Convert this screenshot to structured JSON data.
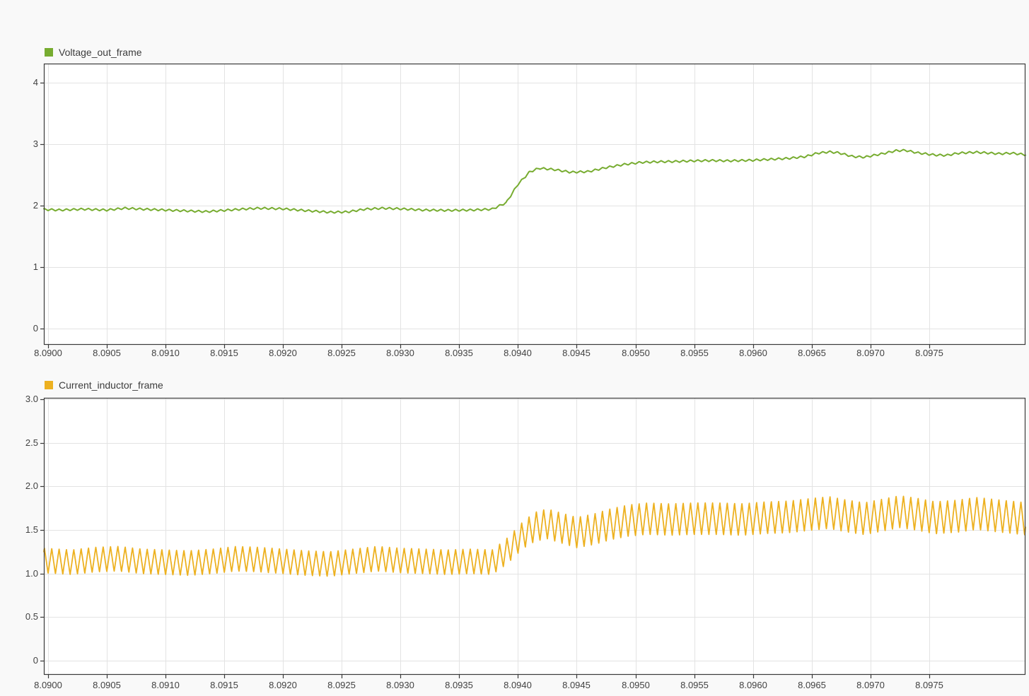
{
  "app": {
    "background_color": "#f9f9f9",
    "plot_background_color": "#ffffff",
    "grid_color": "#e3e3e3",
    "axis_color": "#3a3a3a",
    "tick_label_color": "#424242"
  },
  "chart_data": [
    {
      "type": "line",
      "title": "",
      "xlabel": "",
      "ylabel": "",
      "grid": true,
      "legend_position": "top-left",
      "series": [
        {
          "name": "Voltage_out_frame",
          "color": "#77AC30",
          "line_width": 2
        }
      ],
      "xlim": [
        8.089964,
        8.09832
      ],
      "ylim": [
        -0.26,
        4.31
      ],
      "xticks": [
        {
          "v": 8.09,
          "label": "8.0900"
        },
        {
          "v": 8.0905,
          "label": "8.0905"
        },
        {
          "v": 8.091,
          "label": "8.0910"
        },
        {
          "v": 8.0915,
          "label": "8.0915"
        },
        {
          "v": 8.092,
          "label": "8.0920"
        },
        {
          "v": 8.0925,
          "label": "8.0925"
        },
        {
          "v": 8.093,
          "label": "8.0930"
        },
        {
          "v": 8.0935,
          "label": "8.0935"
        },
        {
          "v": 8.094,
          "label": "8.0940"
        },
        {
          "v": 8.0945,
          "label": "8.0945"
        },
        {
          "v": 8.095,
          "label": "8.0950"
        },
        {
          "v": 8.0955,
          "label": "8.0955"
        },
        {
          "v": 8.096,
          "label": "8.0960"
        },
        {
          "v": 8.0965,
          "label": "8.0965"
        },
        {
          "v": 8.097,
          "label": "8.0970"
        },
        {
          "v": 8.0975,
          "label": "8.0975"
        }
      ],
      "yticks": [
        {
          "v": 0,
          "label": "0"
        },
        {
          "v": 1,
          "label": "1"
        },
        {
          "v": 2,
          "label": "2"
        },
        {
          "v": 3,
          "label": "3"
        },
        {
          "v": 4,
          "label": "4"
        }
      ],
      "signal": {
        "model": "trend_with_ripple",
        "ripple_period_s": 6.25e-05,
        "ripple_amplitude": 0.016,
        "trend_keypoints": [
          [
            8.08996,
            1.94
          ],
          [
            8.0901,
            1.93
          ],
          [
            8.0903,
            1.945
          ],
          [
            8.0905,
            1.93
          ],
          [
            8.09065,
            1.96
          ],
          [
            8.0908,
            1.945
          ],
          [
            8.091,
            1.93
          ],
          [
            8.0912,
            1.915
          ],
          [
            8.09135,
            1.905
          ],
          [
            8.0915,
            1.925
          ],
          [
            8.09165,
            1.945
          ],
          [
            8.0918,
            1.96
          ],
          [
            8.092,
            1.95
          ],
          [
            8.0922,
            1.92
          ],
          [
            8.0924,
            1.895
          ],
          [
            8.09255,
            1.9
          ],
          [
            8.0927,
            1.945
          ],
          [
            8.09285,
            1.96
          ],
          [
            8.093,
            1.95
          ],
          [
            8.0932,
            1.93
          ],
          [
            8.0934,
            1.925
          ],
          [
            8.0936,
            1.93
          ],
          [
            8.09378,
            1.945
          ],
          [
            8.0939,
            2.05
          ],
          [
            8.094,
            2.35
          ],
          [
            8.0941,
            2.55
          ],
          [
            8.09418,
            2.61
          ],
          [
            8.0943,
            2.59
          ],
          [
            8.09445,
            2.545
          ],
          [
            8.0946,
            2.555
          ],
          [
            8.09475,
            2.62
          ],
          [
            8.0949,
            2.67
          ],
          [
            8.09505,
            2.705
          ],
          [
            8.0952,
            2.715
          ],
          [
            8.09535,
            2.72
          ],
          [
            8.0955,
            2.73
          ],
          [
            8.09565,
            2.735
          ],
          [
            8.0958,
            2.73
          ],
          [
            8.096,
            2.74
          ],
          [
            8.09615,
            2.755
          ],
          [
            8.0963,
            2.77
          ],
          [
            8.09645,
            2.8
          ],
          [
            8.09655,
            2.855
          ],
          [
            8.09665,
            2.875
          ],
          [
            8.09673,
            2.86
          ],
          [
            8.09685,
            2.8
          ],
          [
            8.09695,
            2.79
          ],
          [
            8.0971,
            2.845
          ],
          [
            8.09722,
            2.895
          ],
          [
            8.0973,
            2.9
          ],
          [
            8.0974,
            2.86
          ],
          [
            8.09755,
            2.825
          ],
          [
            8.09765,
            2.82
          ],
          [
            8.09775,
            2.855
          ],
          [
            8.0979,
            2.87
          ],
          [
            8.0981,
            2.845
          ],
          [
            8.0982,
            2.855
          ],
          [
            8.09832,
            2.83
          ]
        ]
      }
    },
    {
      "type": "line",
      "title": "",
      "xlabel": "",
      "ylabel": "",
      "grid": true,
      "legend_position": "top-left",
      "series": [
        {
          "name": "Current_inductor_frame",
          "color": "#EDB120",
          "line_width": 1.8
        }
      ],
      "xlim": [
        8.089964,
        8.09832
      ],
      "ylim": [
        -0.162,
        3.017
      ],
      "xticks": [
        {
          "v": 8.09,
          "label": "8.0900"
        },
        {
          "v": 8.0905,
          "label": "8.0905"
        },
        {
          "v": 8.091,
          "label": "8.0910"
        },
        {
          "v": 8.0915,
          "label": "8.0915"
        },
        {
          "v": 8.092,
          "label": "8.0920"
        },
        {
          "v": 8.0925,
          "label": "8.0925"
        },
        {
          "v": 8.093,
          "label": "8.0930"
        },
        {
          "v": 8.0935,
          "label": "8.0935"
        },
        {
          "v": 8.094,
          "label": "8.0940"
        },
        {
          "v": 8.0945,
          "label": "8.0945"
        },
        {
          "v": 8.095,
          "label": "8.0950"
        },
        {
          "v": 8.0955,
          "label": "8.0955"
        },
        {
          "v": 8.096,
          "label": "8.0960"
        },
        {
          "v": 8.0965,
          "label": "8.0965"
        },
        {
          "v": 8.097,
          "label": "8.0970"
        },
        {
          "v": 8.0975,
          "label": "8.0975"
        }
      ],
      "yticks": [
        {
          "v": 0.0,
          "label": "0"
        },
        {
          "v": 0.5,
          "label": "0.5"
        },
        {
          "v": 1.0,
          "label": "1.0"
        },
        {
          "v": 1.5,
          "label": "1.5"
        },
        {
          "v": 2.0,
          "label": "2.0"
        },
        {
          "v": 2.5,
          "label": "2.5"
        },
        {
          "v": 3.0,
          "label": "3.0"
        }
      ],
      "signal": {
        "model": "triangle_envelope",
        "carrier_period_s": 6.25e-05,
        "center_keypoints": [
          [
            8.08996,
            1.15
          ],
          [
            8.0902,
            1.13
          ],
          [
            8.0904,
            1.16
          ],
          [
            8.0906,
            1.17
          ],
          [
            8.0908,
            1.14
          ],
          [
            8.091,
            1.13
          ],
          [
            8.0912,
            1.12
          ],
          [
            8.0914,
            1.14
          ],
          [
            8.0916,
            1.17
          ],
          [
            8.0918,
            1.16
          ],
          [
            8.092,
            1.14
          ],
          [
            8.0922,
            1.12
          ],
          [
            8.0924,
            1.11
          ],
          [
            8.0926,
            1.14
          ],
          [
            8.0928,
            1.17
          ],
          [
            8.093,
            1.15
          ],
          [
            8.0932,
            1.14
          ],
          [
            8.0934,
            1.13
          ],
          [
            8.0936,
            1.14
          ],
          [
            8.09378,
            1.13
          ],
          [
            8.0939,
            1.25
          ],
          [
            8.09405,
            1.45
          ],
          [
            8.09415,
            1.54
          ],
          [
            8.09425,
            1.57
          ],
          [
            8.0944,
            1.51
          ],
          [
            8.0945,
            1.47
          ],
          [
            8.09465,
            1.51
          ],
          [
            8.0948,
            1.57
          ],
          [
            8.09495,
            1.61
          ],
          [
            8.0951,
            1.63
          ],
          [
            8.0953,
            1.62
          ],
          [
            8.0955,
            1.63
          ],
          [
            8.0957,
            1.63
          ],
          [
            8.0959,
            1.62
          ],
          [
            8.0961,
            1.64
          ],
          [
            8.0963,
            1.65
          ],
          [
            8.0965,
            1.68
          ],
          [
            8.09665,
            1.7
          ],
          [
            8.0968,
            1.66
          ],
          [
            8.09695,
            1.63
          ],
          [
            8.0971,
            1.67
          ],
          [
            8.09725,
            1.71
          ],
          [
            8.0974,
            1.68
          ],
          [
            8.09755,
            1.64
          ],
          [
            8.09775,
            1.66
          ],
          [
            8.0979,
            1.69
          ],
          [
            8.0981,
            1.66
          ],
          [
            8.09832,
            1.63
          ]
        ],
        "half_amplitude_keypoints": [
          [
            8.08996,
            0.145
          ],
          [
            8.09378,
            0.145
          ],
          [
            8.094,
            0.155
          ],
          [
            8.0942,
            0.175
          ],
          [
            8.095,
            0.185
          ],
          [
            8.09832,
            0.19
          ]
        ]
      }
    }
  ]
}
